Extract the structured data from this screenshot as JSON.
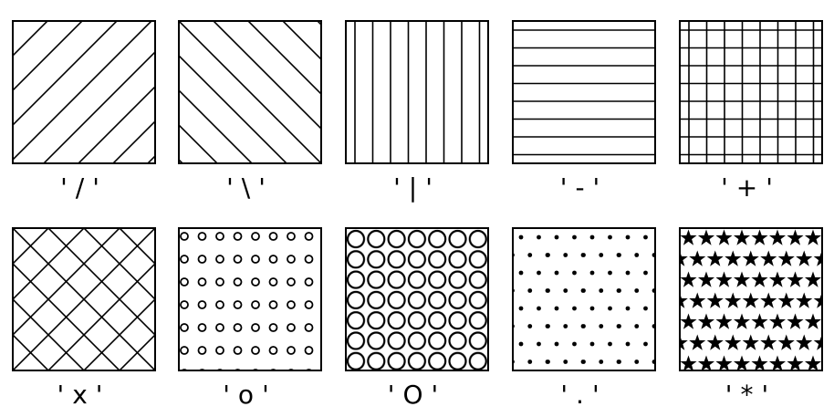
{
  "patterns": [
    {
      "label": "'/'",
      "hatch": "/"
    },
    {
      "label": "'\\'",
      "hatch": "\\"
    },
    {
      "label": "'|'",
      "hatch": "|"
    },
    {
      "label": "'-'",
      "hatch": "-"
    },
    {
      "label": "'+'",
      "hatch": "+"
    },
    {
      "label": "'x'",
      "hatch": "x"
    },
    {
      "label": "'o'",
      "hatch": "o"
    },
    {
      "label": "'O'",
      "hatch": "O"
    },
    {
      "label": "'.'",
      "hatch": "."
    },
    {
      "label": "'*'",
      "hatch": "*"
    }
  ],
  "colors": {
    "stroke": "#000000",
    "background": "#ffffff"
  }
}
